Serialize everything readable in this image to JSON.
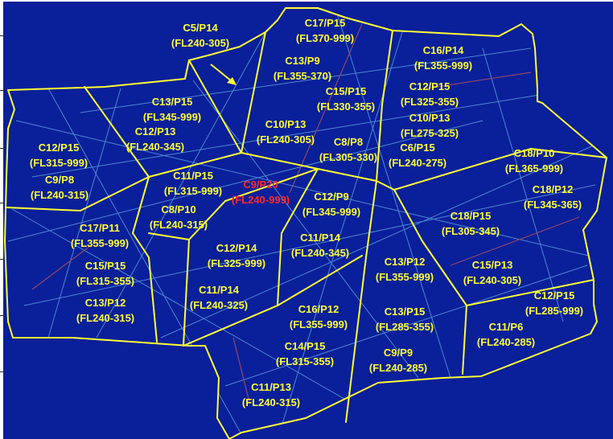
{
  "map": {
    "colors": {
      "background": "#0a1f9a",
      "boundary": "#ffff33",
      "label": "#ffff33",
      "highlight_label": "#ff2a2a",
      "traffic_track": "#7fe0ff",
      "dense_track": "#ff6a3a"
    },
    "sectors": [
      {
        "id": "C5/P14",
        "levels": "(FL240-305)",
        "highlight": false
      },
      {
        "id": "C17/P15",
        "levels": "(FL370-999)",
        "highlight": false
      },
      {
        "id": "C16/P14",
        "levels": "(FL355-999)",
        "highlight": false
      },
      {
        "id": "C13/P9",
        "levels": "(FL355-370)",
        "highlight": false
      },
      {
        "id": "C12/P15",
        "levels": "(FL325-355)",
        "highlight": false
      },
      {
        "id": "C15/P15",
        "levels": "(FL330-355)",
        "highlight": false
      },
      {
        "id": "C13/P15",
        "levels": "(FL345-999)",
        "highlight": false
      },
      {
        "id": "C10/P13",
        "levels": "(FL275-325)",
        "highlight": false
      },
      {
        "id": "C12/P13",
        "levels": "(FL240-345)",
        "highlight": false
      },
      {
        "id": "C10/P13",
        "levels": "(FL240-305)",
        "highlight": false
      },
      {
        "id": "C8/P8",
        "levels": "(FL305-330)",
        "highlight": false
      },
      {
        "id": "C6/P15",
        "levels": "(FL240-275)",
        "highlight": false
      },
      {
        "id": "C12/P15",
        "levels": "(FL315-999)",
        "highlight": false
      },
      {
        "id": "C18/P10",
        "levels": "(FL365-999)",
        "highlight": false
      },
      {
        "id": "C9/P8",
        "levels": "(FL240-315)",
        "highlight": false
      },
      {
        "id": "C11/P15",
        "levels": "(FL315-999)",
        "highlight": false
      },
      {
        "id": "C9/P20",
        "levels": "(FL240-999)",
        "highlight": true
      },
      {
        "id": "C8/P10",
        "levels": "(FL240-315)",
        "highlight": false
      },
      {
        "id": "C12/P9",
        "levels": "(FL345-999)",
        "highlight": false
      },
      {
        "id": "C18/P12",
        "levels": "(FL345-365)",
        "highlight": false
      },
      {
        "id": "C17/P11",
        "levels": "(FL355-999)",
        "highlight": false
      },
      {
        "id": "C18/P15",
        "levels": "(FL305-345)",
        "highlight": false
      },
      {
        "id": "C12/P14",
        "levels": "(FL325-999)",
        "highlight": false
      },
      {
        "id": "C11/P14",
        "levels": "(FL240-345)",
        "highlight": false
      },
      {
        "id": "C15/P15",
        "levels": "(FL315-355)",
        "highlight": false
      },
      {
        "id": "C13/P12",
        "levels": "(FL355-999)",
        "highlight": false
      },
      {
        "id": "C15/P13",
        "levels": "(FL240-305)",
        "highlight": false
      },
      {
        "id": "C11/P14",
        "levels": "(FL240-325)",
        "highlight": false
      },
      {
        "id": "C13/P12",
        "levels": "(FL240-315)",
        "highlight": false
      },
      {
        "id": "C16/P12",
        "levels": "(FL355-999)",
        "highlight": false
      },
      {
        "id": "C12/P15",
        "levels": "(FL285-999)",
        "highlight": false
      },
      {
        "id": "C13/P15",
        "levels": "(FL285-355)",
        "highlight": false
      },
      {
        "id": "C11/P6",
        "levels": "(FL240-285)",
        "highlight": false
      },
      {
        "id": "C14/P15",
        "levels": "(FL315-355)",
        "highlight": false
      },
      {
        "id": "C9/P9",
        "levels": "(FL240-285)",
        "highlight": false
      },
      {
        "id": "C11/P13",
        "levels": "(FL240-315)",
        "highlight": false
      }
    ]
  }
}
